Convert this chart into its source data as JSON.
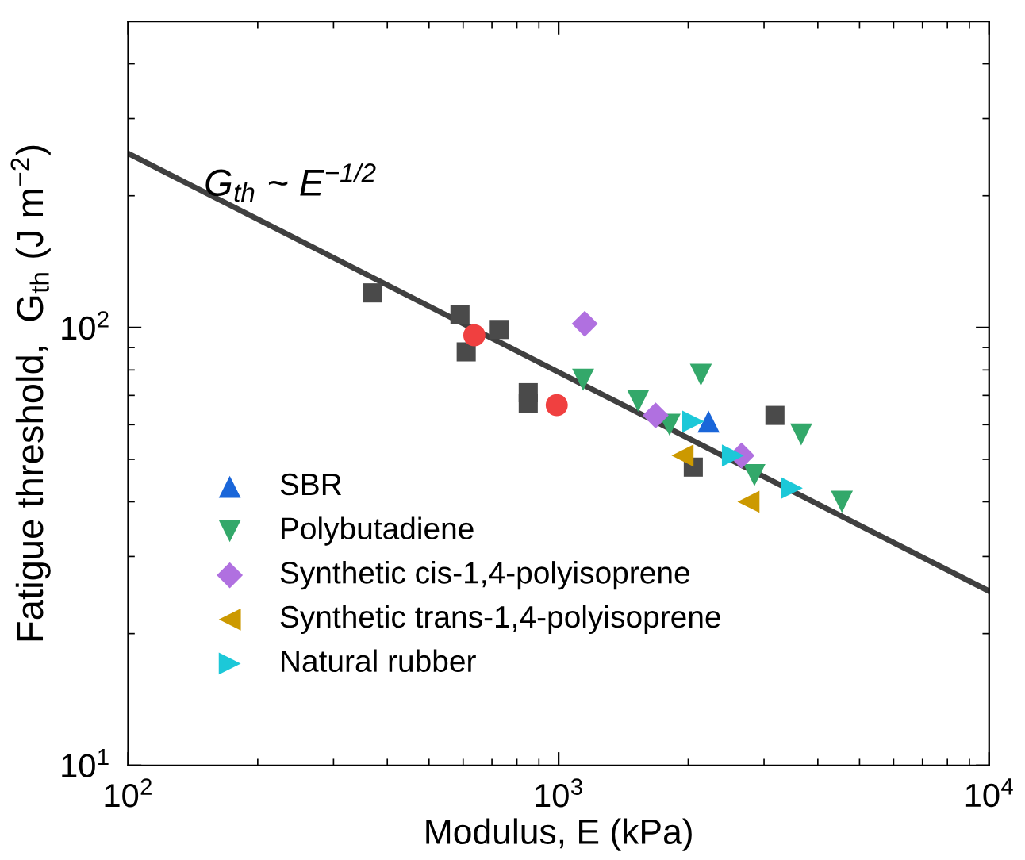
{
  "chart_data": {
    "type": "scatter",
    "xlabel": "Modulus, E (kPa)",
    "ylabel": "Fatigue threshold,  G$_{th}$ (J m$^{−2}$)",
    "log": "xy",
    "grid": false,
    "legend": "bottom left",
    "xlim": [
      100,
      10000
    ],
    "ylim": [
      10,
      500
    ],
    "xticks": [
      {
        "value": 100,
        "label": "10$^{2}$"
      },
      {
        "value": 1000,
        "label": "10$^{3}$"
      },
      {
        "value": 10000,
        "label": "10$^{4}$"
      }
    ],
    "yticks": [
      {
        "value": 10,
        "label": "10$^{1}$"
      },
      {
        "value": 100,
        "label": "10$^{2}$"
      }
    ],
    "annotations": [
      {
        "text": "G$_{th}$ ~ E$^{−1/2}$",
        "x": 150,
        "y": 200
      }
    ],
    "series": [
      {
        "color": "#4a4a4a",
        "marker": "square",
        "x": [
          369,
          590,
          610,
          728,
          850,
          850,
          2055,
          3180
        ],
        "values": [
          120,
          107,
          88,
          99,
          71,
          67,
          48,
          63
        ]
      },
      {
        "color": "#f04040",
        "marker": "circle",
        "x": [
          637,
          990
        ],
        "values": [
          96,
          66.5
        ]
      },
      {
        "name": "SBR",
        "color": "#1a66d9",
        "marker": "triangle",
        "x": [
          2230
        ],
        "values": [
          61
        ]
      },
      {
        "name": "Polybutadiene",
        "color": "#33a86a",
        "marker": "triangle_down",
        "x": [
          1140,
          1530,
          2140,
          1810,
          2850,
          3660,
          4550
        ],
        "values": [
          76,
          68,
          78,
          60,
          46,
          57,
          40
        ]
      },
      {
        "name": "Synthetic cis-1,4-polyisoprene",
        "color": "#b070e0",
        "marker": "diamond",
        "x": [
          1150,
          1680,
          2660
        ],
        "values": [
          102,
          63,
          51
        ]
      },
      {
        "name": "Synthetic trans-1,4-polyisoprene",
        "color": "#cc9900",
        "marker": "triangle_left",
        "x": [
          1940,
          2760
        ],
        "values": [
          51,
          40
        ]
      },
      {
        "name": "Natural rubber",
        "color": "#1cc8d8",
        "marker": "triangle_right",
        "x": [
          2055,
          2540,
          3480
        ],
        "values": [
          61,
          51,
          43
        ]
      },
      {
        "type": "line",
        "color": "#404040",
        "line_style": "solid",
        "x": [
          100,
          10000
        ],
        "values": [
          250,
          25
        ]
      }
    ]
  }
}
